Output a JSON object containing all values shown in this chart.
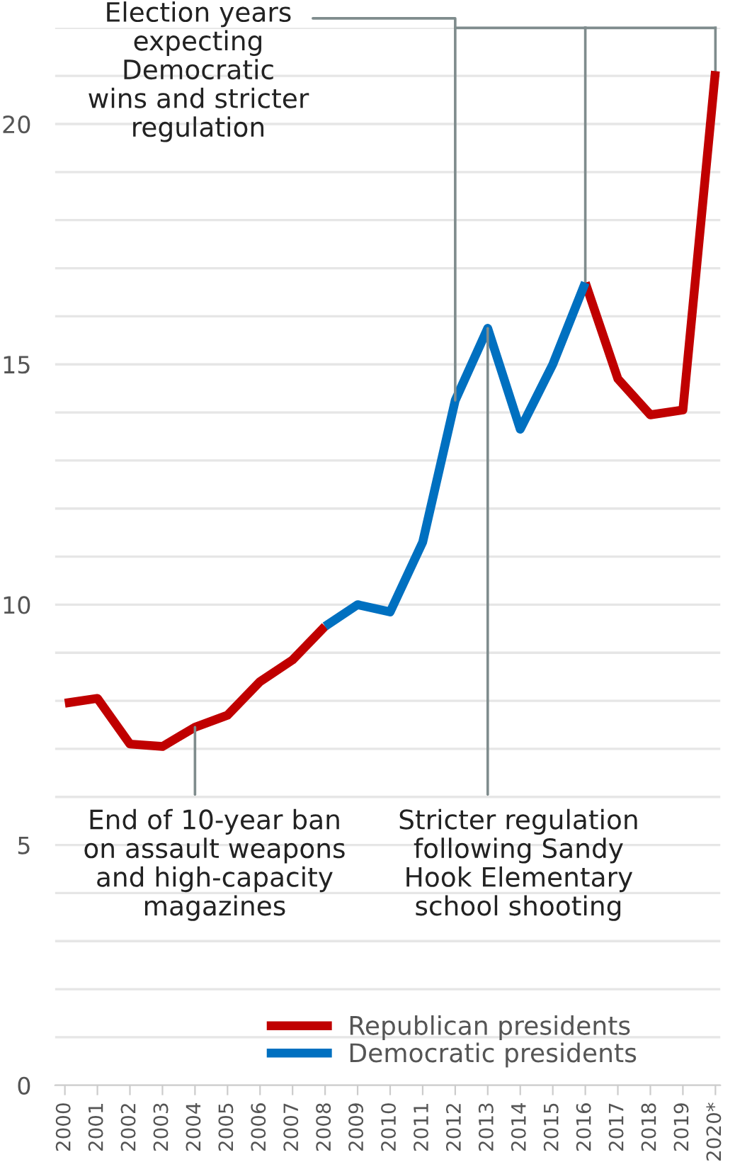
{
  "chart_data": {
    "type": "line",
    "categories": [
      "2000",
      "2001",
      "2002",
      "2003",
      "2004",
      "2005",
      "2006",
      "2007",
      "2008",
      "2009",
      "2010",
      "2011",
      "2012",
      "2013",
      "2014",
      "2015",
      "2016",
      "2017",
      "2018",
      "2019",
      "2020*"
    ],
    "series": [
      {
        "name": "Republican presidents",
        "color": "#c00000",
        "values": [
          7.95,
          8.05,
          7.1,
          7.05,
          7.45,
          7.7,
          8.4,
          8.85,
          9.55,
          null,
          null,
          null,
          null,
          null,
          null,
          null,
          16.7,
          14.7,
          13.95,
          14.05,
          21.1
        ]
      },
      {
        "name": "Democratic presidents",
        "color": "#0070c0",
        "values": [
          null,
          null,
          null,
          null,
          null,
          null,
          null,
          null,
          9.55,
          10.0,
          9.85,
          11.3,
          14.25,
          15.75,
          13.65,
          15.0,
          16.7,
          null,
          null,
          null,
          null
        ]
      }
    ],
    "ylim": [
      0,
      22
    ],
    "yticks": [
      0,
      {
        "value": 1,
        "label": null
      },
      {
        "value": 2,
        "label": null
      },
      {
        "value": 3,
        "label": null
      },
      {
        "value": 4,
        "label": null
      },
      5,
      {
        "value": 6,
        "label": null
      },
      {
        "value": 7,
        "label": null
      },
      {
        "value": 8,
        "label": null
      },
      {
        "value": 9,
        "label": null
      },
      10,
      {
        "value": 11,
        "label": null
      },
      {
        "value": 12,
        "label": null
      },
      {
        "value": 13,
        "label": null
      },
      {
        "value": 14,
        "label": null
      },
      15,
      {
        "value": 16,
        "label": null
      },
      {
        "value": 17,
        "label": null
      },
      {
        "value": 18,
        "label": null
      },
      {
        "value": 19,
        "label": null
      },
      20,
      {
        "value": 21,
        "label": null
      },
      {
        "value": 22,
        "label": null
      }
    ],
    "grid": "y",
    "legend": "bottom",
    "marker": "none",
    "line_style": "solid",
    "annotations": [
      {
        "text": "Election years\nexpecting\nDemocratic\nwins and stricter\nregulation",
        "x": "2012",
        "y": 14.25
      },
      {
        "text": "End of 10-year ban\non assault weapons\nand high-capacity\nmagazines",
        "x": "2004",
        "y": 7.45
      },
      {
        "text": "Stricter regulation\nfollowing Sandy\nHook Elementary\nschool shooting",
        "x": "2013",
        "y": 15.75
      }
    ]
  }
}
